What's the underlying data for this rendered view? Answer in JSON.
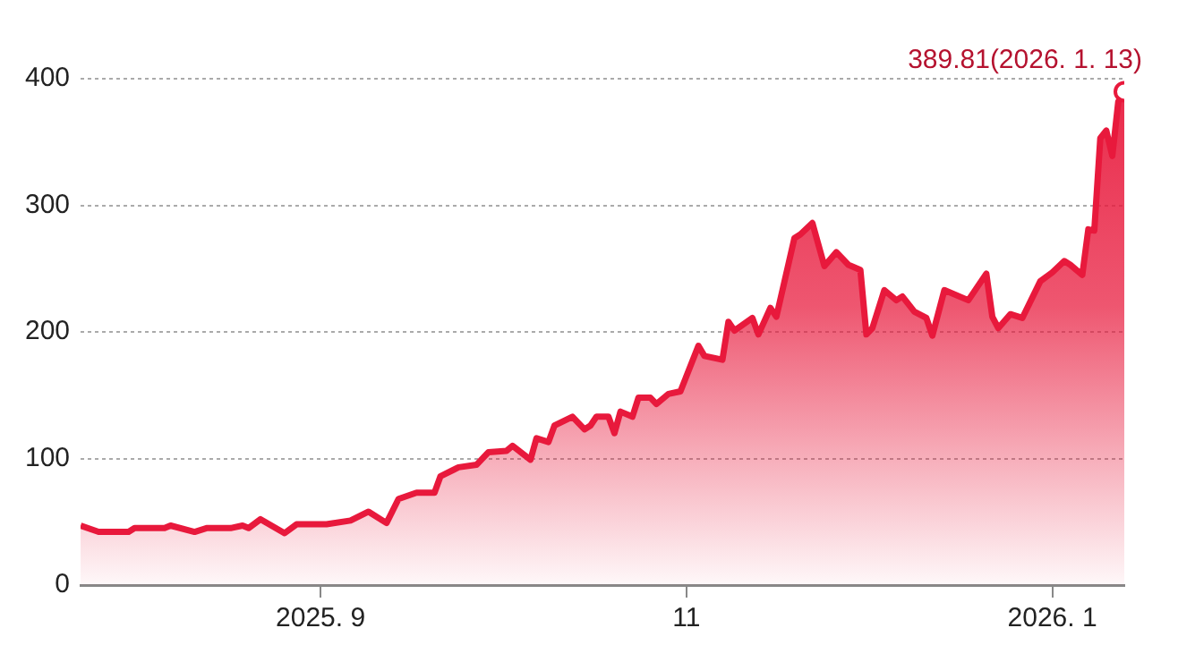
{
  "chart_data": {
    "type": "area",
    "x": [
      "2025-07-23",
      "2025-07-26",
      "2025-07-31",
      "2025-08-01",
      "2025-08-06",
      "2025-08-07",
      "2025-08-11",
      "2025-08-13",
      "2025-08-17",
      "2025-08-19",
      "2025-08-20",
      "2025-08-22",
      "2025-08-26",
      "2025-08-28",
      "2025-09-02",
      "2025-09-06",
      "2025-09-09",
      "2025-09-12",
      "2025-09-14",
      "2025-09-17",
      "2025-09-20",
      "2025-09-21",
      "2025-09-24",
      "2025-09-27",
      "2025-09-29",
      "2025-10-02",
      "2025-10-03",
      "2025-10-06",
      "2025-10-07",
      "2025-10-09",
      "2025-10-10",
      "2025-10-13",
      "2025-10-15",
      "2025-10-16",
      "2025-10-17",
      "2025-10-19",
      "2025-10-20",
      "2025-10-21",
      "2025-10-23",
      "2025-10-24",
      "2025-10-26",
      "2025-10-27",
      "2025-10-29",
      "2025-10-31",
      "2025-11-03",
      "2025-11-04",
      "2025-11-07",
      "2025-11-08",
      "2025-11-09",
      "2025-11-12",
      "2025-11-13",
      "2025-11-15",
      "2025-11-16",
      "2025-11-19",
      "2025-11-20",
      "2025-11-22",
      "2025-11-24",
      "2025-11-26",
      "2025-11-28",
      "2025-11-30",
      "2025-12-01",
      "2025-12-02",
      "2025-12-04",
      "2025-12-06",
      "2025-12-07",
      "2025-12-09",
      "2025-12-11",
      "2025-12-12",
      "2025-12-14",
      "2025-12-18",
      "2025-12-21",
      "2025-12-22",
      "2025-12-23",
      "2025-12-25",
      "2025-12-27",
      "2025-12-30",
      "2026-01-01",
      "2026-01-03",
      "2026-01-04",
      "2026-01-06",
      "2026-01-07",
      "2026-01-08",
      "2026-01-09",
      "2026-01-10",
      "2026-01-11",
      "2026-01-12",
      "2026-01-13"
    ],
    "series": [
      {
        "color": "#e8193c",
        "values": [
          47,
          42,
          42,
          45,
          45,
          47,
          42,
          45,
          45,
          47,
          45,
          52,
          41,
          48,
          48,
          51,
          58,
          49,
          68,
          73,
          73,
          86,
          93,
          95,
          105,
          106,
          110,
          99,
          116,
          113,
          126,
          133,
          123,
          126,
          133,
          133,
          120,
          137,
          133,
          148,
          148,
          143,
          151,
          153,
          189,
          181,
          178,
          208,
          201,
          211,
          198,
          219,
          212,
          274,
          277,
          286,
          252,
          263,
          253,
          249,
          198,
          203,
          233,
          225,
          228,
          216,
          211,
          197,
          233,
          225,
          246,
          212,
          203,
          214,
          211,
          240,
          247,
          256,
          253,
          245,
          281,
          280,
          353,
          359,
          339,
          382,
          389.81
        ]
      }
    ],
    "xlim": [
      "2025-07-23",
      "2026-01-13"
    ],
    "xticks": [
      {
        "value": "2025-09-01",
        "label": "2025. 9"
      },
      {
        "value": "2025-11-01",
        "label": "11"
      },
      {
        "value": "2026-01-01",
        "label": "2026. 1"
      }
    ],
    "ylim": [
      0,
      400
    ],
    "yticks": [
      0,
      100,
      200,
      300,
      400
    ],
    "grid": "y",
    "annotations": [
      {
        "text": "389.81(2026. 1. 13)",
        "x": "2026-01-13",
        "y": 389.81
      }
    ]
  }
}
